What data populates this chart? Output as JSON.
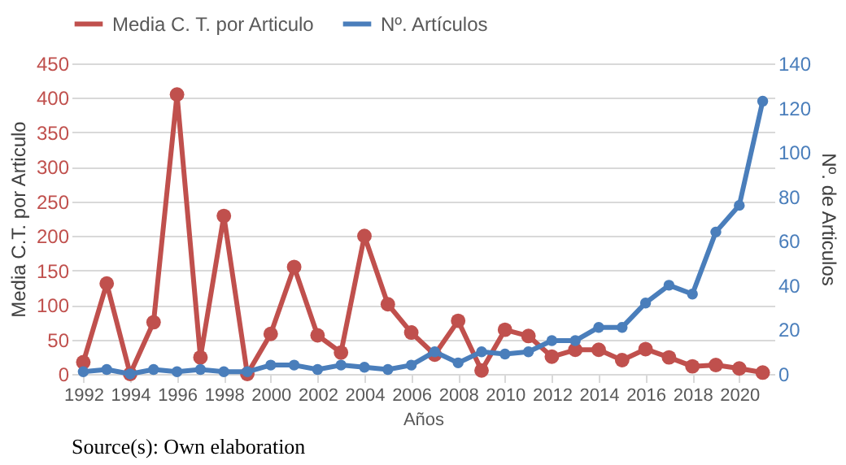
{
  "chart_data": {
    "type": "line",
    "xlabel": "Años",
    "ylabel": "Media C.T. por Articulo",
    "y2label": "Nº. de Articulos",
    "x": [
      1992,
      1993,
      1994,
      1995,
      1996,
      1997,
      1998,
      1999,
      2000,
      2001,
      2002,
      2003,
      2004,
      2005,
      2006,
      2007,
      2008,
      2009,
      2010,
      2011,
      2012,
      2013,
      2014,
      2015,
      2016,
      2017,
      2018,
      2019,
      2020,
      2021
    ],
    "series": [
      {
        "name": "Media C. T. por Articulo",
        "color": "#c0504d",
        "values": [
          17,
          131,
          0,
          75,
          405,
          24,
          229,
          0,
          58,
          155,
          56,
          31,
          200,
          101,
          60,
          28,
          77,
          5,
          64,
          55,
          25,
          35,
          35,
          20,
          36,
          24,
          11,
          13,
          8,
          2
        ]
      },
      {
        "name": "Nº.  Artículos",
        "color": "#4a7ebb",
        "axis": "y2",
        "values": [
          1,
          2,
          0,
          2,
          1,
          2,
          1,
          1,
          4,
          4,
          2,
          4,
          3,
          2,
          4,
          10,
          5,
          10,
          9,
          10,
          15,
          15,
          21,
          21,
          32,
          40,
          36,
          64,
          76,
          123
        ]
      }
    ],
    "xlim": [
      1991.5,
      2021.5
    ],
    "xticks": [
      1992,
      1994,
      1996,
      1998,
      2000,
      2002,
      2004,
      2006,
      2008,
      2010,
      2012,
      2014,
      2016,
      2018,
      2020
    ],
    "ylim": [
      0,
      450
    ],
    "yticks": [
      0,
      50,
      100,
      150,
      200,
      250,
      300,
      350,
      400,
      450
    ],
    "y2lim": [
      0,
      140
    ],
    "y2ticks": [
      0,
      20,
      40,
      60,
      80,
      100,
      120,
      140
    ],
    "grid": "y",
    "legend": "top",
    "marker": "circle",
    "line_style": "solid",
    "annotations": [
      "Source(s): Own elaboration"
    ]
  }
}
